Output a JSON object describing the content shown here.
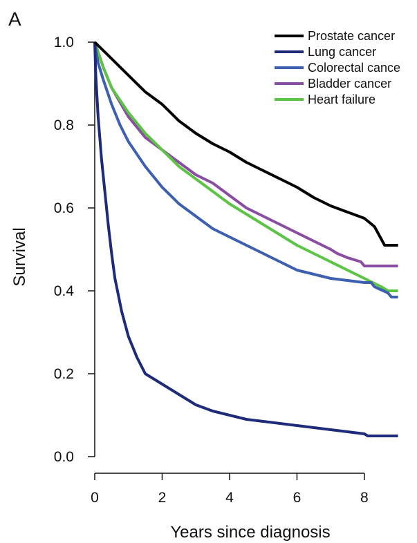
{
  "chart_data": {
    "type": "line",
    "panel_label": "A",
    "title": "",
    "xlabel": "Years since diagnosis",
    "ylabel": "Survival",
    "xlim": [
      0,
      9.5
    ],
    "ylim": [
      -0.04,
      1.04
    ],
    "x_ticks": [
      {
        "value": 0,
        "label": "0"
      },
      {
        "value": 2,
        "label": "2"
      },
      {
        "value": 4,
        "label": "4"
      },
      {
        "value": 6,
        "label": "6"
      },
      {
        "value": 8,
        "label": "8"
      }
    ],
    "y_ticks": [
      {
        "value": 0.0,
        "label": "0.0"
      },
      {
        "value": 0.2,
        "label": "0.2"
      },
      {
        "value": 0.4,
        "label": "0.4"
      },
      {
        "value": 0.6,
        "label": "0.6"
      },
      {
        "value": 0.8,
        "label": "0.8"
      },
      {
        "value": 1.0,
        "label": "1.0"
      }
    ],
    "grid": false,
    "legend_position": "top-right",
    "series": [
      {
        "name": "Prostate cancer",
        "color": "#000000",
        "points": [
          [
            0,
            1.0
          ],
          [
            0.5,
            0.96
          ],
          [
            1,
            0.92
          ],
          [
            1.5,
            0.88
          ],
          [
            2,
            0.85
          ],
          [
            2.5,
            0.81
          ],
          [
            3,
            0.78
          ],
          [
            3.5,
            0.755
          ],
          [
            4,
            0.735
          ],
          [
            4.5,
            0.71
          ],
          [
            5,
            0.69
          ],
          [
            5.5,
            0.67
          ],
          [
            6,
            0.65
          ],
          [
            6.5,
            0.625
          ],
          [
            7,
            0.605
          ],
          [
            7.5,
            0.59
          ],
          [
            8,
            0.575
          ],
          [
            8.3,
            0.555
          ],
          [
            8.5,
            0.525
          ],
          [
            8.6,
            0.51
          ],
          [
            9,
            0.51
          ]
        ]
      },
      {
        "name": "Lung cancer",
        "color": "#1e2a7a",
        "points": [
          [
            0,
            1.0
          ],
          [
            0.03,
            0.92
          ],
          [
            0.1,
            0.82
          ],
          [
            0.2,
            0.72
          ],
          [
            0.3,
            0.64
          ],
          [
            0.4,
            0.56
          ],
          [
            0.5,
            0.49
          ],
          [
            0.6,
            0.43
          ],
          [
            0.8,
            0.35
          ],
          [
            1,
            0.29
          ],
          [
            1.25,
            0.24
          ],
          [
            1.5,
            0.2
          ],
          [
            2,
            0.175
          ],
          [
            2.5,
            0.15
          ],
          [
            3,
            0.125
          ],
          [
            3.5,
            0.11
          ],
          [
            4,
            0.1
          ],
          [
            4.5,
            0.09
          ],
          [
            5,
            0.085
          ],
          [
            5.5,
            0.08
          ],
          [
            6,
            0.075
          ],
          [
            6.5,
            0.07
          ],
          [
            7,
            0.065
          ],
          [
            7.5,
            0.06
          ],
          [
            8,
            0.055
          ],
          [
            8.1,
            0.05
          ],
          [
            9,
            0.05
          ]
        ]
      },
      {
        "name": "Colorectal cance",
        "color": "#3d5fb0",
        "points": [
          [
            0,
            1.0
          ],
          [
            0.1,
            0.95
          ],
          [
            0.25,
            0.91
          ],
          [
            0.5,
            0.85
          ],
          [
            0.75,
            0.8
          ],
          [
            1,
            0.76
          ],
          [
            1.5,
            0.7
          ],
          [
            2,
            0.65
          ],
          [
            2.5,
            0.61
          ],
          [
            3,
            0.58
          ],
          [
            3.5,
            0.55
          ],
          [
            4,
            0.53
          ],
          [
            4.5,
            0.51
          ],
          [
            5,
            0.49
          ],
          [
            5.5,
            0.47
          ],
          [
            6,
            0.45
          ],
          [
            6.5,
            0.44
          ],
          [
            7,
            0.43
          ],
          [
            7.5,
            0.425
          ],
          [
            8,
            0.42
          ],
          [
            8.2,
            0.42
          ],
          [
            8.3,
            0.41
          ],
          [
            8.7,
            0.395
          ],
          [
            8.8,
            0.385
          ],
          [
            9,
            0.385
          ]
        ]
      },
      {
        "name": "Bladder cancer",
        "color": "#8b4da3",
        "points": [
          [
            0,
            1.0
          ],
          [
            0.25,
            0.94
          ],
          [
            0.5,
            0.89
          ],
          [
            1,
            0.82
          ],
          [
            1.5,
            0.77
          ],
          [
            2,
            0.74
          ],
          [
            2.5,
            0.71
          ],
          [
            3,
            0.68
          ],
          [
            3.5,
            0.66
          ],
          [
            4,
            0.63
          ],
          [
            4.5,
            0.6
          ],
          [
            5,
            0.58
          ],
          [
            5.5,
            0.56
          ],
          [
            6,
            0.54
          ],
          [
            6.5,
            0.52
          ],
          [
            7,
            0.5
          ],
          [
            7.2,
            0.49
          ],
          [
            7.5,
            0.48
          ],
          [
            7.9,
            0.47
          ],
          [
            8,
            0.46
          ],
          [
            9,
            0.46
          ]
        ]
      },
      {
        "name": "Heart failure",
        "color": "#5cc444",
        "points": [
          [
            0,
            1.0
          ],
          [
            0.25,
            0.94
          ],
          [
            0.5,
            0.89
          ],
          [
            1,
            0.83
          ],
          [
            1.5,
            0.78
          ],
          [
            2,
            0.74
          ],
          [
            2.5,
            0.7
          ],
          [
            3,
            0.67
          ],
          [
            3.5,
            0.64
          ],
          [
            4,
            0.61
          ],
          [
            4.5,
            0.585
          ],
          [
            5,
            0.56
          ],
          [
            5.5,
            0.535
          ],
          [
            6,
            0.51
          ],
          [
            6.5,
            0.49
          ],
          [
            7,
            0.47
          ],
          [
            7.5,
            0.45
          ],
          [
            8,
            0.43
          ],
          [
            8.5,
            0.41
          ],
          [
            8.7,
            0.4
          ],
          [
            9,
            0.4
          ]
        ]
      }
    ]
  }
}
